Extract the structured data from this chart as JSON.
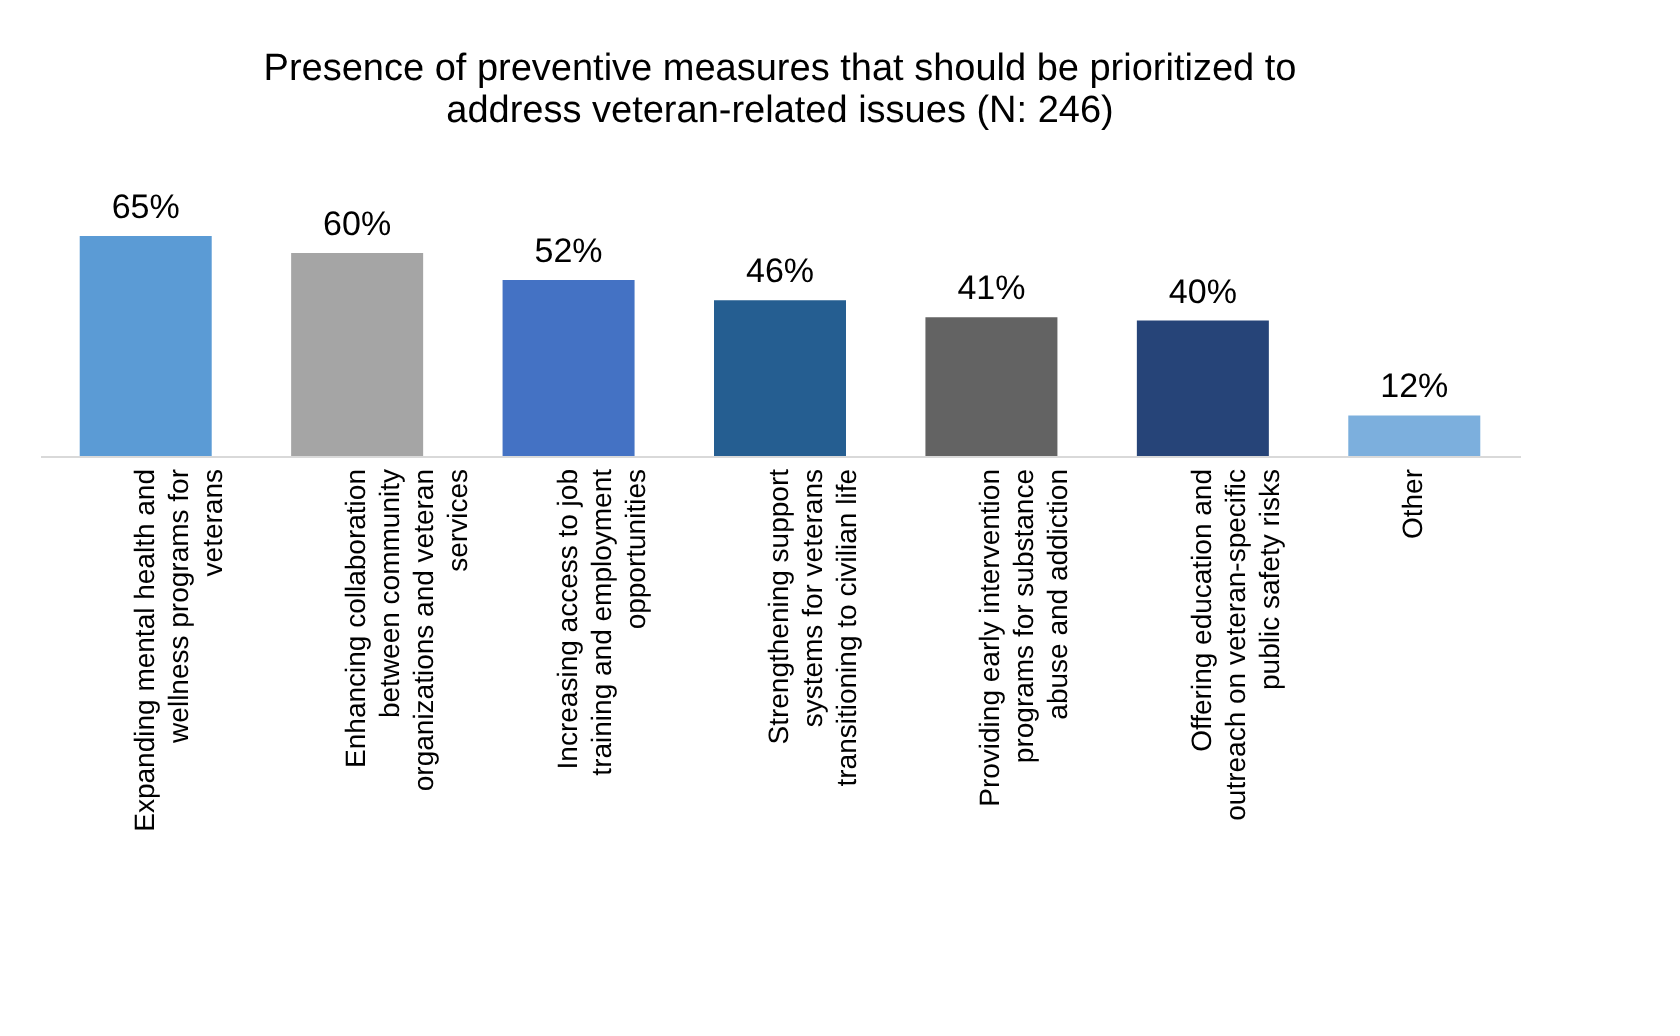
{
  "chart_data": {
    "type": "bar",
    "title": "Presence of preventive measures that should be prioritized to\naddress veteran-related issues (N: 246)",
    "categories": [
      "Expanding mental health and\nwellness programs for\nveterans",
      "Enhancing collaboration\nbetween community\norganizations and veteran\nservices",
      "Increasing access to job\ntraining and employment\nopportunities",
      "Strengthening support\nsystems for veterans\ntransitioning to civilian life",
      "Providing early intervention\nprograms for substance\nabuse and addiction",
      "Offering education and\noutreach on veteran-specific\npublic safety risks",
      "Other"
    ],
    "values": [
      65,
      60,
      52,
      46,
      41,
      40,
      12
    ],
    "colors": [
      "#5b9bd5",
      "#a5a5a5",
      "#4472c4",
      "#255e91",
      "#636363",
      "#264478",
      "#7cafdd"
    ],
    "value_labels": [
      "65%",
      "60%",
      "52%",
      "46%",
      "41%",
      "40%",
      "12%"
    ],
    "grid": false
  }
}
